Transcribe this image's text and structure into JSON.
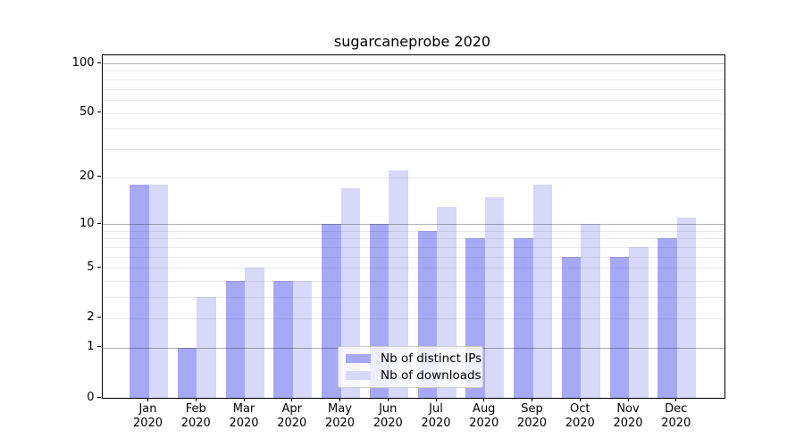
{
  "chart_data": {
    "type": "bar",
    "title": "sugarcaneprobe 2020",
    "categories": [
      "Jan",
      "Feb",
      "Mar",
      "Apr",
      "May",
      "Jun",
      "Jul",
      "Aug",
      "Sep",
      "Oct",
      "Nov",
      "Dec"
    ],
    "year_label": "2020",
    "series": [
      {
        "name": "Nb of distinct IPs",
        "color": "#a8a8f8",
        "values": [
          18,
          1,
          4,
          4,
          10,
          10,
          9,
          8,
          8,
          6,
          6,
          8
        ]
      },
      {
        "name": "Nb of downloads",
        "color": "#d8d8fa",
        "values": [
          18,
          3,
          5,
          4,
          17,
          22,
          13,
          15,
          18,
          10,
          7,
          11
        ]
      }
    ],
    "xlabel": "",
    "ylabel": "",
    "y_scale": "log1p",
    "ylim": [
      0,
      100
    ],
    "y_ticks": [
      0,
      1,
      2,
      5,
      10,
      20,
      50,
      100
    ],
    "grid": {
      "major": [
        1,
        10,
        100
      ],
      "minor": [
        2,
        3,
        4,
        5,
        6,
        7,
        8,
        9,
        20,
        30,
        40,
        50,
        60,
        70,
        80,
        90
      ],
      "on": true,
      "drawn_over_bars": true
    },
    "legend": {
      "position": "lower-center-inside",
      "entries": [
        "Nb of distinct IPs",
        "Nb of downloads"
      ]
    }
  },
  "colors": {
    "background": "#ffffff",
    "axis": "#000000",
    "text": "#000000",
    "major_grid": "#b0b0b0",
    "minor_grid": "#eaeaea",
    "legend_border": "#cccccc"
  }
}
